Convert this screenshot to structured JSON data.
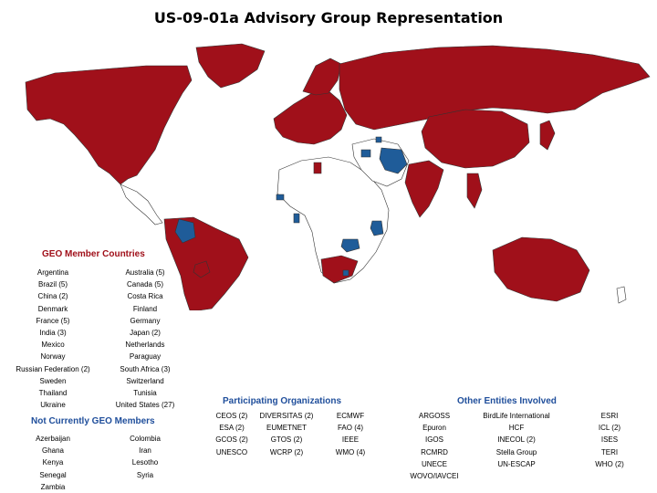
{
  "title": "US-09-01a Advisory Group Representation",
  "colors": {
    "member": "#a0101a",
    "non_member": "#1f5c99",
    "other": "#ffffff",
    "border": "#333333"
  },
  "geo_members": {
    "heading": "GEO Member Countries",
    "rows": [
      [
        "Argentina",
        "Australia (5)"
      ],
      [
        "Brazil (5)",
        "Canada (5)"
      ],
      [
        "China (2)",
        "Costa Rica"
      ],
      [
        "Denmark",
        "Finland"
      ],
      [
        "France (5)",
        "Germany"
      ],
      [
        "India (3)",
        "Japan (2)"
      ],
      [
        "Mexico",
        "Netherlands"
      ],
      [
        "Norway",
        "Paraguay"
      ],
      [
        "Russian Federation (2)",
        "South Africa (3)"
      ],
      [
        "Sweden",
        "Switzerland"
      ],
      [
        "Thailand",
        "Tunisia"
      ],
      [
        "Ukraine",
        "United States (27)"
      ]
    ]
  },
  "non_members": {
    "heading": "Not Currently GEO Members",
    "rows": [
      [
        "Azerbaijan",
        "Colombia"
      ],
      [
        "Ghana",
        "Iran"
      ],
      [
        "Kenya",
        "Lesotho"
      ],
      [
        "Senegal",
        "Syria"
      ],
      [
        "Zambia",
        ""
      ]
    ]
  },
  "participating": {
    "heading": "Participating Organizations",
    "columns": [
      [
        "CEOS (2)",
        "ESA (2)",
        "GCOS (2)",
        "UNESCO"
      ],
      [
        "DIVERSITAS (2)",
        "EUMETNET",
        "GTOS (2)",
        "WCRP (2)"
      ],
      [
        "ECMWF",
        "FAO (4)",
        "IEEE",
        "WMO (4)"
      ]
    ]
  },
  "other_entities": {
    "heading": "Other Entities Involved",
    "columns": [
      [
        "ARGOSS",
        "Epuron",
        "IGOS",
        "RCMRD",
        "UNECE",
        "WOVO/IAVCEI"
      ],
      [
        "BirdLife International",
        "HCF",
        "INECOL (2)",
        "Stella Group",
        "UN-ESCAP"
      ],
      [
        "ESRI",
        "ICL (2)",
        "ISES",
        "TERI",
        "WHO (2)"
      ]
    ]
  }
}
